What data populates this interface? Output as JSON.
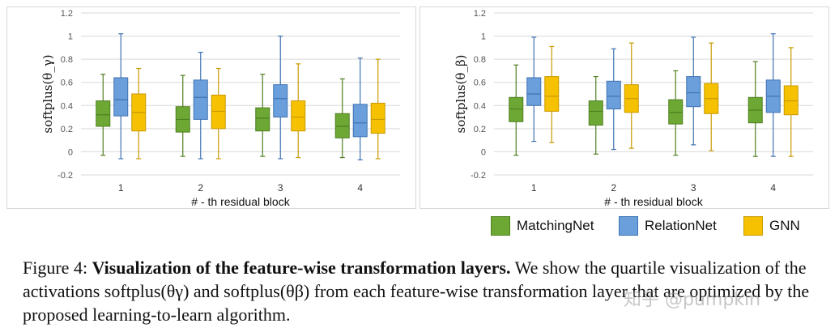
{
  "chart_data": [
    {
      "type": "boxplot",
      "panel": "left",
      "ylabel": "softplus(θ_γ)",
      "xlabel": "# - th residual block",
      "ylim": [
        -0.2,
        1.2
      ],
      "yticks": [
        "-0.2",
        "0",
        "0.2",
        "0.4",
        "0.6",
        "0.8",
        "1",
        "1.2"
      ],
      "ytick_values": [
        -0.2,
        0,
        0.2,
        0.4,
        0.6,
        0.8,
        1,
        1.2
      ],
      "categories": [
        "1",
        "2",
        "3",
        "4"
      ],
      "series": [
        {
          "name": "MatchingNet",
          "boxes": [
            {
              "min": -0.03,
              "q1": 0.22,
              "median": 0.32,
              "q3": 0.44,
              "max": 0.67
            },
            {
              "min": -0.04,
              "q1": 0.17,
              "median": 0.28,
              "q3": 0.39,
              "max": 0.66
            },
            {
              "min": -0.04,
              "q1": 0.18,
              "median": 0.29,
              "q3": 0.38,
              "max": 0.67
            },
            {
              "min": -0.05,
              "q1": 0.12,
              "median": 0.22,
              "q3": 0.33,
              "max": 0.63
            }
          ]
        },
        {
          "name": "RelationNet",
          "boxes": [
            {
              "min": -0.06,
              "q1": 0.31,
              "median": 0.45,
              "q3": 0.64,
              "max": 1.02
            },
            {
              "min": -0.06,
              "q1": 0.28,
              "median": 0.47,
              "q3": 0.62,
              "max": 0.86
            },
            {
              "min": -0.06,
              "q1": 0.3,
              "median": 0.46,
              "q3": 0.58,
              "max": 1.0
            },
            {
              "min": -0.07,
              "q1": 0.13,
              "median": 0.25,
              "q3": 0.41,
              "max": 0.81
            }
          ]
        },
        {
          "name": "GNN",
          "boxes": [
            {
              "min": -0.06,
              "q1": 0.18,
              "median": 0.34,
              "q3": 0.5,
              "max": 0.72
            },
            {
              "min": -0.06,
              "q1": 0.2,
              "median": 0.35,
              "q3": 0.49,
              "max": 0.72
            },
            {
              "min": -0.05,
              "q1": 0.18,
              "median": 0.3,
              "q3": 0.44,
              "max": 0.76
            },
            {
              "min": -0.06,
              "q1": 0.16,
              "median": 0.28,
              "q3": 0.42,
              "max": 0.8
            }
          ]
        }
      ]
    },
    {
      "type": "boxplot",
      "panel": "right",
      "ylabel": "softplus(θ_β)",
      "xlabel": "# - th residual block",
      "ylim": [
        -0.2,
        1.2
      ],
      "yticks": [
        "-0.2",
        "0",
        "0.2",
        "0.4",
        "0.6",
        "0.8",
        "1",
        "1.2"
      ],
      "ytick_values": [
        -0.2,
        0,
        0.2,
        0.4,
        0.6,
        0.8,
        1,
        1.2
      ],
      "categories": [
        "1",
        "2",
        "3",
        "4"
      ],
      "series": [
        {
          "name": "MatchingNet",
          "boxes": [
            {
              "min": -0.03,
              "q1": 0.26,
              "median": 0.37,
              "q3": 0.47,
              "max": 0.75
            },
            {
              "min": -0.02,
              "q1": 0.23,
              "median": 0.35,
              "q3": 0.44,
              "max": 0.65
            },
            {
              "min": -0.03,
              "q1": 0.24,
              "median": 0.34,
              "q3": 0.45,
              "max": 0.7
            },
            {
              "min": -0.04,
              "q1": 0.25,
              "median": 0.36,
              "q3": 0.47,
              "max": 0.78
            }
          ]
        },
        {
          "name": "RelationNet",
          "boxes": [
            {
              "min": 0.09,
              "q1": 0.4,
              "median": 0.5,
              "q3": 0.64,
              "max": 0.99
            },
            {
              "min": 0.02,
              "q1": 0.37,
              "median": 0.48,
              "q3": 0.61,
              "max": 0.89
            },
            {
              "min": 0.06,
              "q1": 0.39,
              "median": 0.51,
              "q3": 0.65,
              "max": 0.99
            },
            {
              "min": -0.04,
              "q1": 0.34,
              "median": 0.48,
              "q3": 0.62,
              "max": 1.02
            }
          ]
        },
        {
          "name": "GNN",
          "boxes": [
            {
              "min": 0.08,
              "q1": 0.35,
              "median": 0.48,
              "q3": 0.65,
              "max": 0.91
            },
            {
              "min": 0.03,
              "q1": 0.34,
              "median": 0.46,
              "q3": 0.58,
              "max": 0.94
            },
            {
              "min": 0.01,
              "q1": 0.33,
              "median": 0.46,
              "q3": 0.59,
              "max": 0.94
            },
            {
              "min": -0.04,
              "q1": 0.32,
              "median": 0.44,
              "q3": 0.57,
              "max": 0.9
            }
          ]
        }
      ]
    }
  ],
  "legend": [
    {
      "name": "MatchingNet",
      "color": "#6da834",
      "edge": "#4f7f20"
    },
    {
      "name": "RelationNet",
      "color": "#6a9fdc",
      "edge": "#3f72b3"
    },
    {
      "name": "GNN",
      "color": "#f5c100",
      "edge": "#c99a00"
    }
  ],
  "caption": {
    "prefix": "Figure 4: ",
    "bold": "Visualization of the feature-wise transformation layers.",
    "rest": " We show the quartile visualization of the activations softplus(θγ) and softplus(θβ) from each feature-wise transformation layer that are optimized by the proposed learning-to-learn algorithm."
  },
  "watermark": "知乎 @pumpkin"
}
